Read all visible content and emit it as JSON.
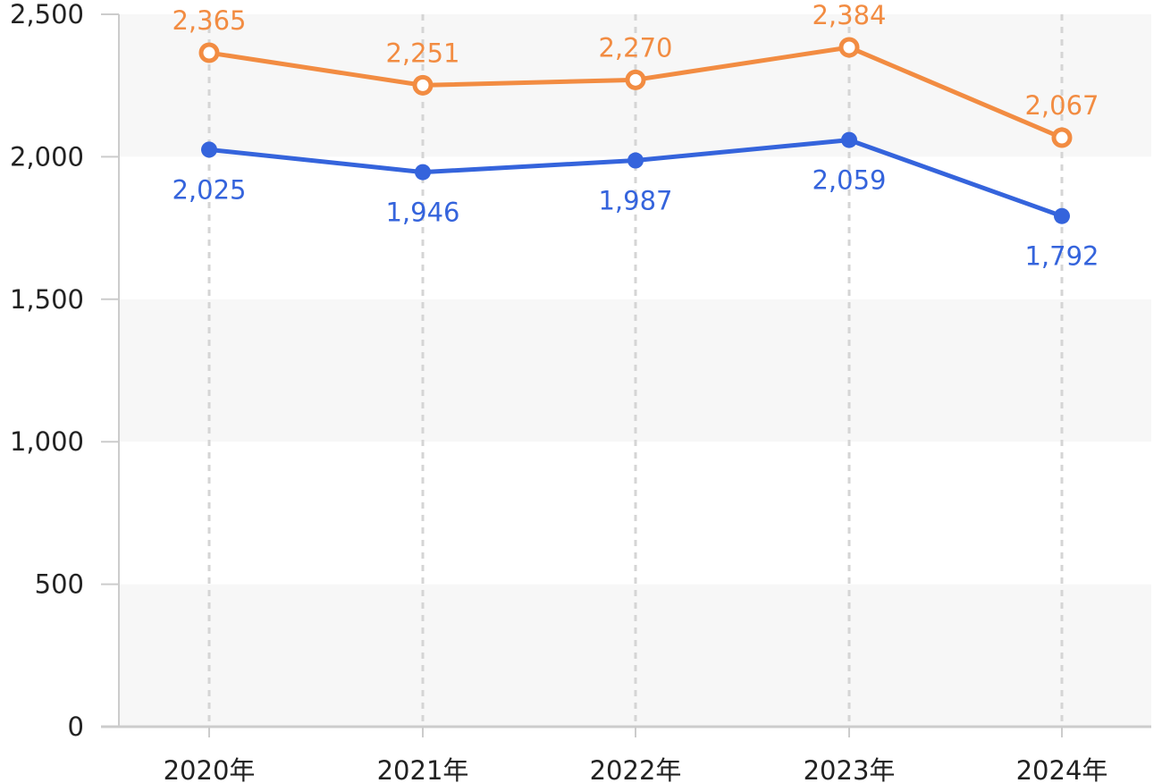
{
  "chart_data": {
    "type": "line",
    "categories": [
      "2020年",
      "2021年",
      "2022年",
      "2023年",
      "2024年"
    ],
    "series": [
      {
        "values": [
          2365,
          2251,
          2270,
          2384,
          2067
        ],
        "labels": [
          "2,365",
          "2,251",
          "2,270",
          "2,384",
          "2,067"
        ],
        "color": "#F28C42",
        "marker": "hollow-circle",
        "label_position": "above"
      },
      {
        "values": [
          2025,
          1946,
          1987,
          2059,
          1792
        ],
        "labels": [
          "2,025",
          "1,946",
          "1,987",
          "2,059",
          "1,792"
        ],
        "color": "#3564DC",
        "marker": "filled-circle",
        "label_position": "below"
      }
    ],
    "ylim": [
      0,
      2500
    ],
    "y_ticks": [
      0,
      500,
      1000,
      1500,
      2000,
      2500
    ],
    "y_tick_labels": [
      "0",
      "500",
      "1,000",
      "1,500",
      "2,000",
      "2,500"
    ],
    "grid": "alternating horizontal bands",
    "vertical_guides": "dashed",
    "legend": "none",
    "colors": {
      "band": "#F7F7F7",
      "axis": "#CCCCCC",
      "guide": "#D5D5D5"
    }
  }
}
